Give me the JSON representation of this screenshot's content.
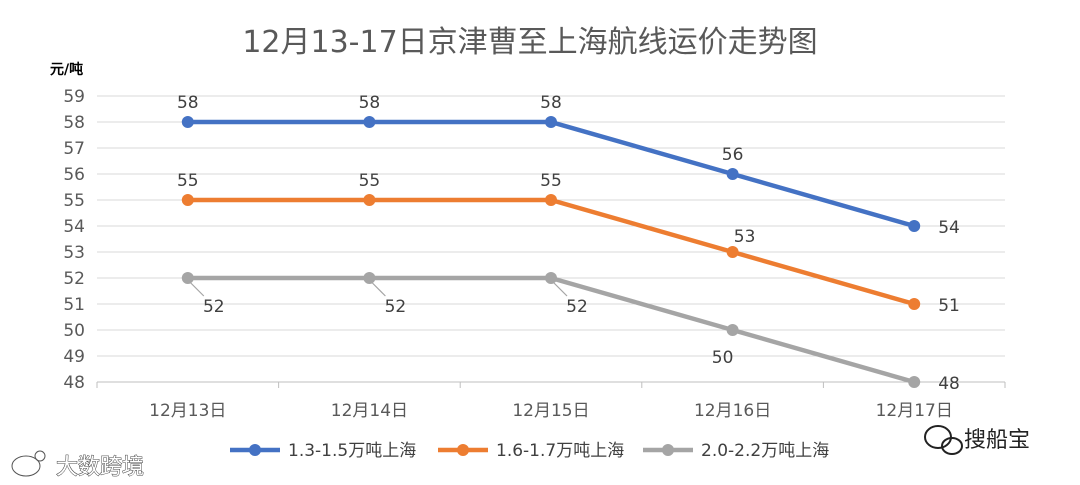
{
  "chart_data": {
    "type": "line",
    "title": "12月13-17日京津曹至上海航线运价走势图",
    "ylabel": "元/吨",
    "xlabel": "",
    "categories": [
      "12月13日",
      "12月14日",
      "12月15日",
      "12月16日",
      "12月17日"
    ],
    "ylim": [
      48,
      59
    ],
    "yticks": [
      48,
      49,
      50,
      51,
      52,
      53,
      54,
      55,
      56,
      57,
      58,
      59
    ],
    "grid": true,
    "legend": "bottom",
    "series": [
      {
        "name": "1.3-1.5万吨上海",
        "color": "#4472c4",
        "values": [
          58,
          58,
          58,
          56,
          54
        ]
      },
      {
        "name": "1.6-1.7万吨上海",
        "color": "#ed7d31",
        "values": [
          55,
          55,
          55,
          53,
          51
        ]
      },
      {
        "name": "2.0-2.2万吨上海",
        "color": "#a5a5a5",
        "values": [
          52,
          52,
          52,
          50,
          48
        ]
      }
    ]
  },
  "watermarks": {
    "right": "搜船宝",
    "left": "大数跨境",
    "right_icon": "wechat-icon",
    "left_icon": "weibo-icon"
  }
}
